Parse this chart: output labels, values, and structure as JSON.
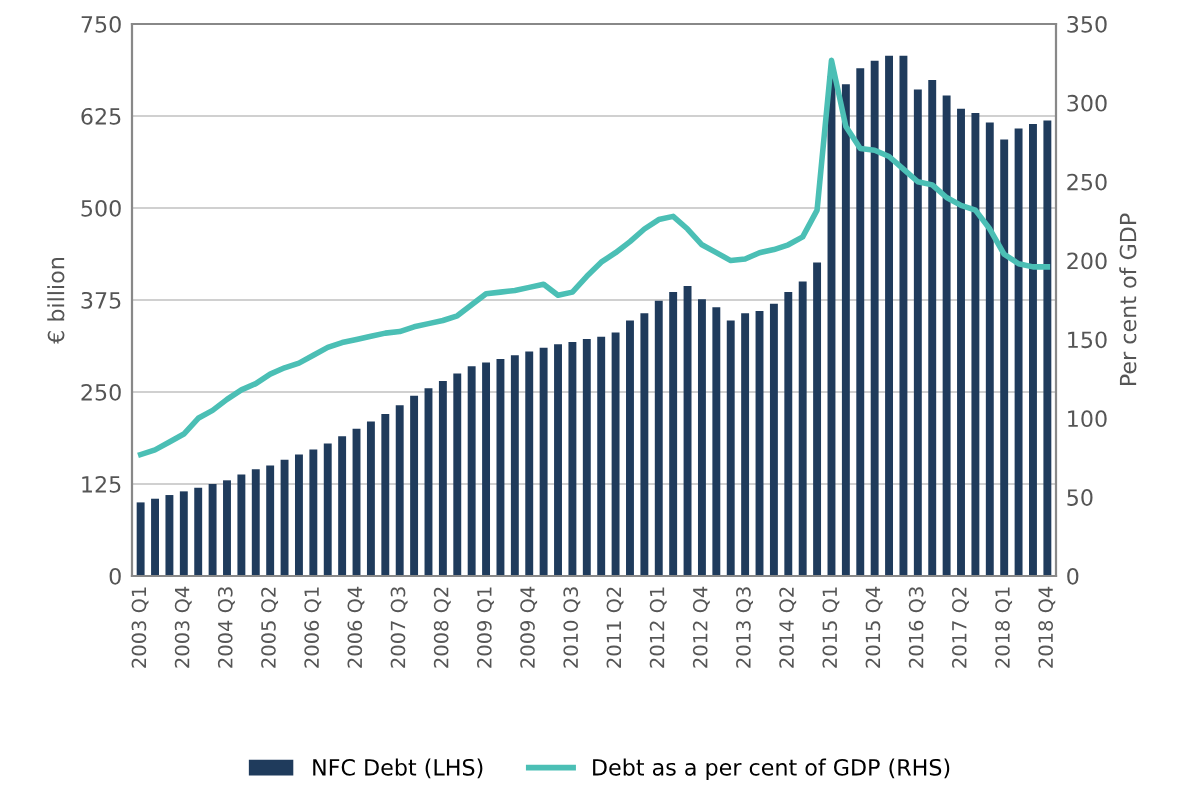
{
  "chart_data": {
    "type": "bar",
    "ylabel": "€ billion",
    "y2label": "Per cent of GDP",
    "categories": [
      "2003 Q1",
      null,
      null,
      "2003 Q4",
      null,
      null,
      "2004 Q3",
      null,
      null,
      "2005 Q2",
      null,
      null,
      "2006 Q1",
      null,
      null,
      "2006 Q4",
      null,
      null,
      "2007 Q3",
      null,
      null,
      "2008 Q2",
      null,
      null,
      "2009 Q1",
      null,
      null,
      "2009 Q4",
      null,
      null,
      "2010 Q3",
      null,
      null,
      "2011 Q2",
      null,
      null,
      "2012 Q1",
      null,
      null,
      "2012 Q4",
      null,
      null,
      "2013 Q3",
      null,
      null,
      "2014 Q2",
      null,
      null,
      "2015 Q1",
      null,
      null,
      "2015 Q4",
      null,
      null,
      "2016 Q3",
      null,
      null,
      "2017 Q2",
      null,
      null,
      "2018 Q1",
      null,
      null,
      "2018 Q4"
    ],
    "series": [
      {
        "name": "NFC Debt (LHS)",
        "color": "#1f3b5c",
        "values": [
          100,
          105,
          110,
          115,
          120,
          125,
          130,
          138,
          145,
          150,
          158,
          165,
          172,
          180,
          190,
          200,
          210,
          220,
          232,
          245,
          255,
          265,
          275,
          285,
          290,
          295,
          300,
          305,
          310,
          315,
          318,
          322,
          325,
          331,
          347,
          357,
          374,
          386,
          394,
          376,
          365,
          347,
          357,
          360,
          370,
          386,
          400,
          426,
          679,
          668,
          690,
          700,
          707,
          707,
          661,
          674,
          653,
          635,
          629,
          616,
          593,
          608,
          614,
          619
        ]
      },
      {
        "name": "Debt as a per cent of GDP (RHS)",
        "type": "line",
        "axis": "y2",
        "color": "#4bbfb5",
        "values": [
          77,
          80,
          85,
          90,
          100,
          105,
          112,
          118,
          122,
          128,
          132,
          135,
          140,
          145,
          148,
          150,
          152,
          154,
          155,
          158,
          160,
          162,
          165,
          172,
          179,
          180,
          181,
          183,
          185,
          178,
          180,
          190,
          199,
          205,
          212,
          220,
          226,
          228,
          220,
          210,
          205,
          200,
          201,
          205,
          207,
          210,
          215,
          232,
          327,
          285,
          271,
          270,
          266,
          258,
          250,
          248,
          240,
          235,
          232,
          220,
          204,
          198,
          196,
          196
        ]
      }
    ],
    "ylim": [
      0,
      750
    ],
    "yticks": [
      0,
      125,
      250,
      375,
      500,
      625,
      750
    ],
    "y2lim": [
      0,
      350
    ],
    "y2ticks": [
      0,
      50,
      100,
      150,
      200,
      250,
      300,
      350
    ],
    "grid": "y",
    "legend": "bottom",
    "marker": "none",
    "line_style": "solid"
  }
}
